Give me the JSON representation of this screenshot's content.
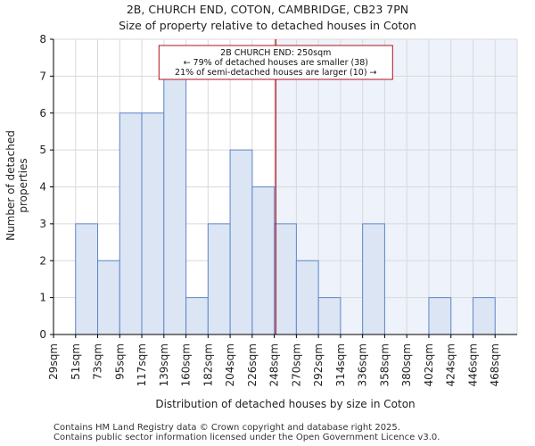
{
  "title_line1": "2B, CHURCH END, COTON, CAMBRIDGE, CB23 7PN",
  "title_line2": "Size of property relative to detached houses in Coton",
  "footer_line1": "Contains HM Land Registry data © Crown copyright and database right 2025.",
  "footer_line2": "Contains public sector information licensed under the Open Government Licence v3.0.",
  "colors": {
    "bar_fill": "#dbe5f4",
    "bar_stroke": "#5f88c8",
    "highlight_region": "#eef2fb",
    "marker_line": "#b0111a",
    "annotation_border": "#b0111a",
    "axis": "#000000",
    "grid": "#d9d9d9"
  },
  "chart_data": {
    "type": "bar",
    "title": "Size of property relative to detached houses in Coton",
    "xlabel": "Distribution of detached houses by size in Coton",
    "ylabel": "Number of detached properties",
    "categories": [
      "29sqm",
      "51sqm",
      "73sqm",
      "95sqm",
      "117sqm",
      "139sqm",
      "160sqm",
      "182sqm",
      "204sqm",
      "226sqm",
      "248sqm",
      "270sqm",
      "292sqm",
      "314sqm",
      "336sqm",
      "358sqm",
      "380sqm",
      "402sqm",
      "424sqm",
      "446sqm",
      "468sqm"
    ],
    "bin_edges": [
      29,
      51,
      73,
      95,
      117,
      139,
      160,
      182,
      204,
      226,
      248,
      270,
      292,
      314,
      336,
      358,
      380,
      402,
      424,
      446,
      468,
      490
    ],
    "values": [
      0,
      3,
      2,
      6,
      6,
      7,
      1,
      3,
      5,
      4,
      3,
      2,
      1,
      0,
      3,
      0,
      0,
      1,
      0,
      1,
      0
    ],
    "ylim": [
      0,
      8
    ],
    "yticks": [
      0,
      1,
      2,
      3,
      4,
      5,
      6,
      7,
      8
    ],
    "grid": true,
    "marker": {
      "value": 250,
      "unit": "sqm",
      "annotation_lines": [
        "2B CHURCH END: 250sqm",
        "← 79% of detached houses are smaller (38)",
        "21% of semi-detached houses are larger (10) →"
      ]
    }
  }
}
